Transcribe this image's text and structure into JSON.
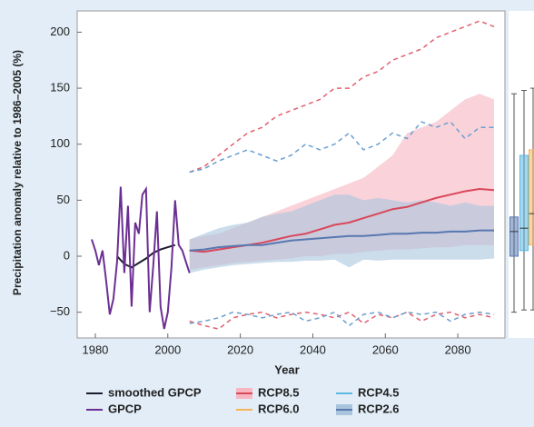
{
  "chart_data": {
    "type": "line",
    "xlabel": "Year",
    "ylabel": "Precipitation anomaly  relative to 1986–2005 (%)",
    "xlim": [
      1975,
      2093
    ],
    "ylim": [
      -73,
      219
    ],
    "xticks": [
      1980,
      2000,
      2020,
      2040,
      2060,
      2080
    ],
    "yticks": [
      {
        "value": -50,
        "label": "−50"
      },
      0,
      50,
      100,
      150,
      200
    ],
    "grid": false,
    "x": [
      2006,
      2010,
      2014,
      2018,
      2022,
      2026,
      2030,
      2034,
      2038,
      2042,
      2046,
      2050,
      2054,
      2058,
      2062,
      2066,
      2070,
      2074,
      2078,
      2082,
      2086,
      2090
    ],
    "series": [
      {
        "name": "smoothed GPCP",
        "color": "#1c1c30",
        "x": [
          1986,
          1988,
          1990,
          1992,
          1994,
          1996,
          1998,
          2000,
          2002
        ],
        "values": [
          0,
          -7,
          -10,
          -6,
          -2,
          3,
          6,
          8,
          10
        ]
      },
      {
        "name": "GPCP",
        "color": "#6b2f93",
        "x": [
          1979,
          1980,
          1981,
          1982,
          1983,
          1984,
          1985,
          1986,
          1987,
          1988,
          1989,
          1990,
          1991,
          1992,
          1993,
          1994,
          1995,
          1996,
          1997,
          1998,
          1999,
          2000,
          2001,
          2002,
          2003,
          2004,
          2005,
          2006
        ],
        "values": [
          15,
          5,
          -8,
          5,
          -22,
          -52,
          -38,
          -5,
          62,
          -15,
          45,
          -45,
          30,
          20,
          55,
          60,
          -50,
          -8,
          40,
          -45,
          -65,
          -50,
          -10,
          50,
          10,
          5,
          -5,
          -15
        ]
      },
      {
        "name": "RCP8.5",
        "color": "#d9475a",
        "band_color": "#f7b6c2",
        "dash_color": "#e0606f",
        "values": [
          5,
          4,
          6,
          8,
          10,
          12,
          15,
          18,
          20,
          24,
          28,
          30,
          34,
          38,
          42,
          44,
          48,
          52,
          55,
          58,
          60,
          59
        ],
        "low": [
          -12,
          -10,
          -8,
          -6,
          -5,
          -4,
          -3,
          -2,
          0,
          0,
          2,
          2,
          4,
          5,
          6,
          6,
          7,
          8,
          8,
          10,
          10,
          10
        ],
        "high": [
          15,
          18,
          20,
          25,
          30,
          35,
          40,
          45,
          50,
          55,
          60,
          65,
          70,
          80,
          90,
          110,
          115,
          120,
          130,
          140,
          145,
          140
        ],
        "max": [
          75,
          80,
          90,
          100,
          110,
          115,
          125,
          130,
          135,
          140,
          150,
          150,
          160,
          165,
          175,
          180,
          185,
          195,
          200,
          205,
          210,
          205
        ],
        "min": [
          -58,
          -62,
          -65,
          -55,
          -52,
          -50,
          -55,
          -52,
          -50,
          -52,
          -55,
          -50,
          -60,
          -52,
          -55,
          -50,
          -58,
          -52,
          -50,
          -55,
          -52,
          -55
        ]
      },
      {
        "name": "RCP6.0",
        "color": "#f5b35a",
        "box": [
          -48,
          10,
          38,
          95,
          150
        ]
      },
      {
        "name": "RCP4.5",
        "color": "#5bb8e0",
        "box": [
          -48,
          5,
          25,
          90,
          148
        ]
      },
      {
        "name": "RCP2.6",
        "color": "#5878b0",
        "band_color": "#a9c5de",
        "dash_color": "#6a9fd0",
        "values": [
          5,
          6,
          8,
          9,
          10,
          10,
          12,
          14,
          15,
          16,
          17,
          18,
          18,
          19,
          20,
          20,
          21,
          21,
          22,
          22,
          23,
          23
        ],
        "low": [
          -15,
          -12,
          -10,
          -8,
          -7,
          -6,
          -5,
          -5,
          -4,
          -4,
          -3,
          -10,
          -3,
          -4,
          -3,
          -3,
          -3,
          -3,
          -3,
          -3,
          -3,
          -2
        ],
        "high": [
          15,
          20,
          25,
          28,
          30,
          35,
          38,
          40,
          45,
          50,
          55,
          55,
          50,
          52,
          50,
          48,
          50,
          48,
          45,
          48,
          45,
          45
        ],
        "max": [
          75,
          78,
          85,
          90,
          95,
          90,
          85,
          90,
          100,
          95,
          100,
          110,
          95,
          100,
          110,
          105,
          120,
          115,
          120,
          105,
          115,
          115
        ],
        "min": [
          -60,
          -58,
          -55,
          -50,
          -52,
          -55,
          -52,
          -50,
          -58,
          -55,
          -50,
          -62,
          -52,
          -50,
          -55,
          -50,
          -52,
          -50,
          -58,
          -52,
          -50,
          -52
        ],
        "box": [
          -50,
          0,
          22,
          35,
          145
        ]
      }
    ]
  }
}
